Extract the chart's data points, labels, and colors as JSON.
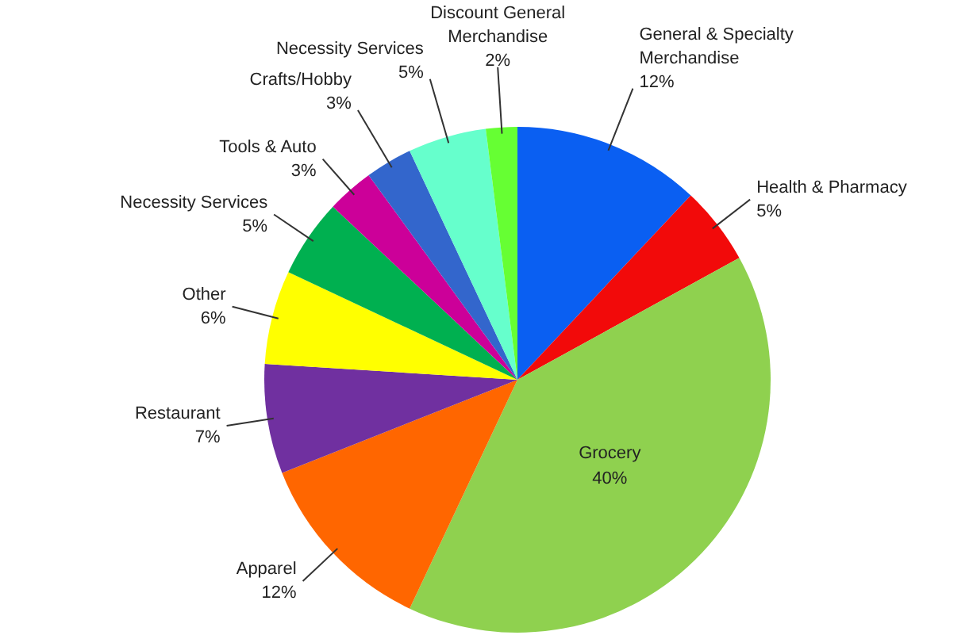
{
  "chart_data": {
    "type": "pie",
    "categories": [
      "General & Specialty Merchandise",
      "Health & Pharmacy",
      "Grocery",
      "Apparel",
      "Restaurant",
      "Other",
      "Necessity Services",
      "Tools & Auto",
      "Crafts/Hobby",
      "Necessity Services",
      "Discount General Merchandise"
    ],
    "values": [
      12,
      5,
      40,
      12,
      7,
      6,
      5,
      3,
      3,
      5,
      2
    ],
    "value_labels": [
      "12%",
      "5%",
      "40%",
      "12%",
      "7%",
      "6%",
      "5%",
      "3%",
      "3%",
      "5%",
      "2%"
    ],
    "colors": [
      "#0a5ff2",
      "#f20a0a",
      "#8fd14f",
      "#ff6600",
      "#7030a0",
      "#ffff00",
      "#00b050",
      "#cc0099",
      "#3366cc",
      "#66ffcc",
      "#66ff33"
    ],
    "legend": false
  }
}
